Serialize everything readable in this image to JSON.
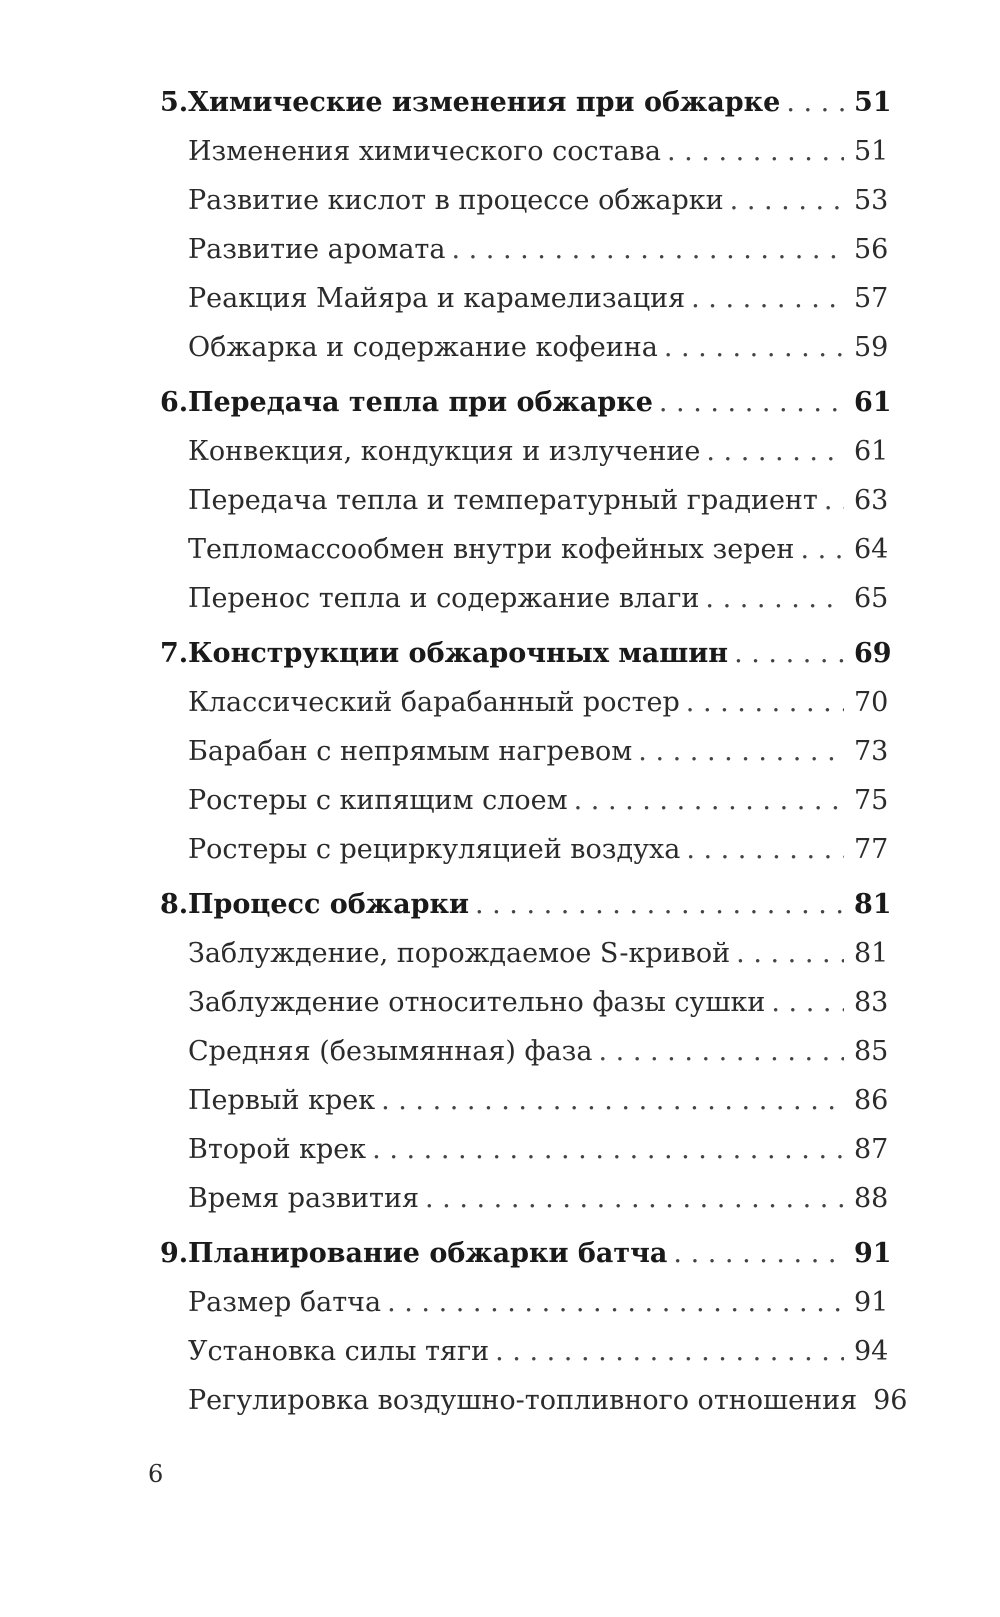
{
  "chapters": [
    {
      "number": "5.",
      "title": "Химические изменения при обжарке",
      "page": "51",
      "sections": [
        {
          "title": "Изменения химического состава",
          "page": "51"
        },
        {
          "title": "Развитие кислот в процессе обжарки",
          "page": "53"
        },
        {
          "title": "Развитие аромата",
          "page": "56"
        },
        {
          "title": "Реакция Майяра и карамелизация",
          "page": "57"
        },
        {
          "title": "Обжарка и содержание кофеина",
          "page": "59"
        }
      ]
    },
    {
      "number": "6.",
      "title": "Передача тепла при обжарке",
      "page": "61",
      "sections": [
        {
          "title": "Конвекция, кондукция и излучение",
          "page": "61"
        },
        {
          "title": "Передача тепла и температурный градиент",
          "page": "63"
        },
        {
          "title": "Тепломассообмен внутри кофейных зерен",
          "page": "64"
        },
        {
          "title": "Перенос тепла и содержание влаги",
          "page": "65"
        }
      ]
    },
    {
      "number": "7.",
      "title": "Конструкции обжарочных машин",
      "page": "69",
      "sections": [
        {
          "title": "Классический барабанный ростер",
          "page": "70"
        },
        {
          "title": "Барабан с непрямым нагревом",
          "page": "73"
        },
        {
          "title": "Ростеры с кипящим слоем",
          "page": "75"
        },
        {
          "title": "Ростеры с рециркуляцией воздуха",
          "page": "77"
        }
      ]
    },
    {
      "number": "8.",
      "title": "Процесс обжарки",
      "page": "81",
      "sections": [
        {
          "title": "Заблуждение, порождаемое S-кривой",
          "page": "81"
        },
        {
          "title": "Заблуждение относительно фазы сушки",
          "page": "83"
        },
        {
          "title": "Средняя (безымянная) фаза",
          "page": "85"
        },
        {
          "title": "Первый крек",
          "page": "86"
        },
        {
          "title": "Второй крек",
          "page": "87"
        },
        {
          "title": "Время развития",
          "page": "88"
        }
      ]
    },
    {
      "number": "9.",
      "title": "Планирование обжарки батча",
      "page": "91",
      "sections": [
        {
          "title": "Размер батча",
          "page": "91"
        },
        {
          "title": "Установка силы тяги",
          "page": "94"
        },
        {
          "title": "Регулировка воздушно-топливного отношения",
          "page": "96"
        }
      ]
    }
  ],
  "folio": "6"
}
